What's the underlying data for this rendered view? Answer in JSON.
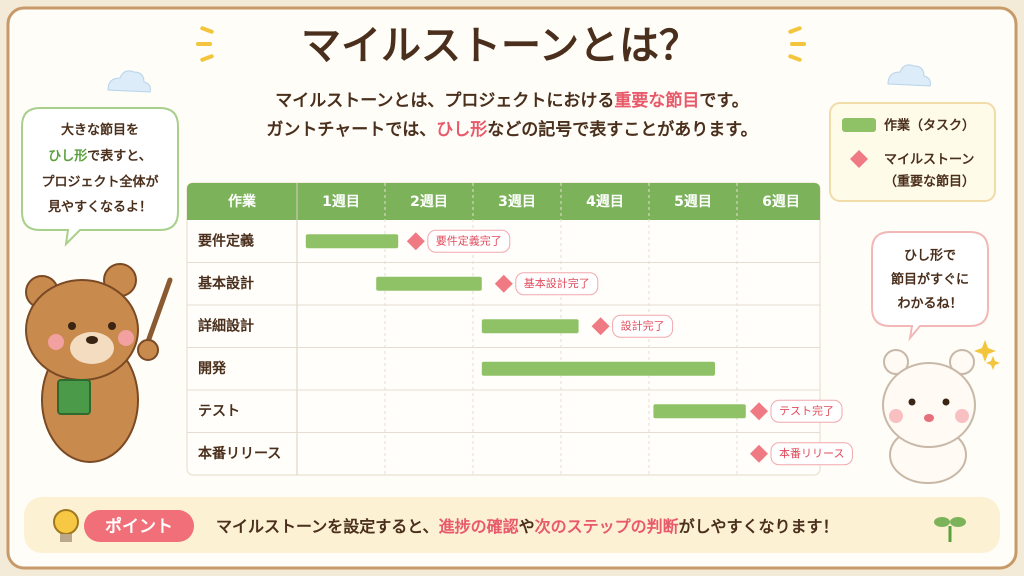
{
  "title": "マイルストーンとは？",
  "intro": {
    "line1": [
      "マイルストーンとは、プロジェクトにおける",
      "重要な節目",
      "です。"
    ],
    "line2": [
      "ガントチャートでは、",
      "ひし形",
      "などの記号で表すことがあります。"
    ]
  },
  "left_bubble": {
    "lines": [
      [
        "大きな節目を"
      ],
      [
        "ひし形",
        "で表すと、"
      ],
      [
        "プロジェクト全体が"
      ],
      [
        "見やすくなるよ！"
      ]
    ]
  },
  "right_bubble": {
    "lines": [
      "ひし形で",
      "節目がすぐに",
      "わかるね！"
    ]
  },
  "legend": {
    "task": "作業（タスク）",
    "milestone": [
      "マイルストーン",
      "（重要な節目）"
    ]
  },
  "gantt": {
    "header": "作業",
    "weeks": [
      "1週目",
      "2週目",
      "3週目",
      "4週目",
      "5週目",
      "6週目"
    ],
    "tasks": [
      {
        "name": "要件定義",
        "start": 0.1,
        "end": 1.15,
        "milestone": {
          "week": 1.35,
          "label": "要件定義完了"
        }
      },
      {
        "name": "基本設計",
        "start": 0.9,
        "end": 2.1,
        "milestone": {
          "week": 2.35,
          "label": "基本設計完了"
        }
      },
      {
        "name": "詳細設計",
        "start": 2.1,
        "end": 3.2,
        "milestone": {
          "week": 3.45,
          "label": "設計完了"
        }
      },
      {
        "name": "開発",
        "start": 2.1,
        "end": 4.75
      },
      {
        "name": "テスト",
        "start": 4.05,
        "end": 5.1,
        "milestone": {
          "week": 5.25,
          "label": "テスト完了"
        }
      },
      {
        "name": "本番リリース",
        "milestone": {
          "week": 5.25,
          "label": "本番リリース"
        }
      }
    ]
  },
  "point": {
    "badge": "ポイント",
    "text": [
      "マイルストーンを設定すると、",
      "進捗の確認",
      "や",
      "次のステップの判断",
      "がしやすくなります！"
    ]
  }
}
